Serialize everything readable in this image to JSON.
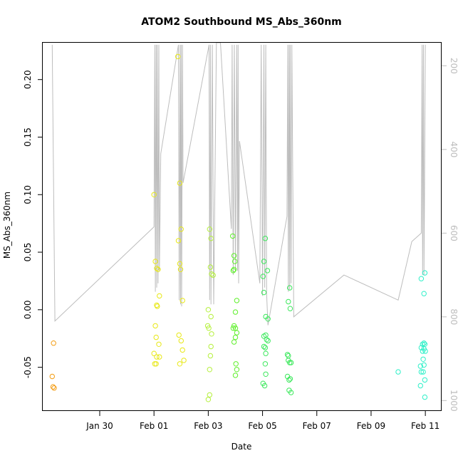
{
  "chart_data": {
    "type": "scatter",
    "title": "ATOM2 Southbound MS_Abs_360nm",
    "xlabel": "Date",
    "ylabel": "MS_Abs_360nm",
    "xlim_days": [
      27.9,
      42.6
    ],
    "ylim": [
      -0.088,
      0.232
    ],
    "y2lim": [
      1025,
      145
    ],
    "x_ticks": [
      {
        "day": 30,
        "label": "Jan 30"
      },
      {
        "day": 32,
        "label": "Feb 01"
      },
      {
        "day": 34,
        "label": "Feb 03"
      },
      {
        "day": 36,
        "label": "Feb 05"
      },
      {
        "day": 38,
        "label": "Feb 07"
      },
      {
        "day": 40,
        "label": "Feb 09"
      },
      {
        "day": 42,
        "label": "Feb 11"
      }
    ],
    "y_ticks": [
      {
        "value": 0.2,
        "label": "0.20"
      },
      {
        "value": 0.15,
        "label": "0.15"
      },
      {
        "value": 0.1,
        "label": "0.10"
      },
      {
        "value": 0.05,
        "label": "0.05"
      },
      {
        "value": 0.0,
        "label": "0.00"
      },
      {
        "value": -0.05,
        "label": "-0.05"
      }
    ],
    "y2_ticks": [
      {
        "value": 200,
        "label": "200"
      },
      {
        "value": 400,
        "label": "400"
      },
      {
        "value": 600,
        "label": "600"
      },
      {
        "value": 800,
        "label": "800"
      },
      {
        "value": 1000,
        "label": "1000"
      }
    ],
    "point_colors": [
      "#f39c12",
      "#e8e816",
      "#b5f03c",
      "#5ef02a",
      "#3ce85c",
      "#2ef0c8"
    ],
    "series": [
      {
        "color_index": 0,
        "points": [
          [
            28.3,
            -0.029
          ],
          [
            28.25,
            -0.058
          ],
          [
            28.28,
            -0.067
          ],
          [
            28.32,
            -0.068
          ]
        ]
      },
      {
        "color_index": 1,
        "points": [
          [
            32.0,
            0.1
          ],
          [
            32.05,
            0.042
          ],
          [
            32.1,
            0.036
          ],
          [
            32.15,
            0.035
          ],
          [
            32.2,
            0.012
          ],
          [
            32.1,
            0.004
          ],
          [
            32.12,
            0.003
          ],
          [
            32.05,
            -0.014
          ],
          [
            32.08,
            -0.024
          ],
          [
            32.18,
            -0.03
          ],
          [
            32.0,
            -0.038
          ],
          [
            32.1,
            -0.041
          ],
          [
            32.2,
            -0.041
          ],
          [
            32.03,
            -0.047
          ],
          [
            32.08,
            -0.047
          ]
        ]
      },
      {
        "color_index": 1,
        "points": [
          [
            32.88,
            0.22
          ],
          [
            32.95,
            0.11
          ],
          [
            33.0,
            0.07
          ],
          [
            32.9,
            0.06
          ],
          [
            32.95,
            0.04
          ],
          [
            32.98,
            0.035
          ],
          [
            33.05,
            0.008
          ],
          [
            32.92,
            -0.022
          ],
          [
            33.0,
            -0.027
          ],
          [
            33.05,
            -0.035
          ],
          [
            33.1,
            -0.044
          ],
          [
            32.95,
            -0.047
          ]
        ]
      },
      {
        "color_index": 2,
        "points": [
          [
            34.05,
            0.07
          ],
          [
            34.1,
            0.062
          ],
          [
            34.08,
            0.037
          ],
          [
            34.12,
            0.031
          ],
          [
            34.18,
            0.03
          ],
          [
            34.0,
            0.0
          ],
          [
            34.1,
            -0.006
          ],
          [
            33.98,
            -0.014
          ],
          [
            34.02,
            -0.016
          ],
          [
            34.12,
            -0.021
          ],
          [
            34.1,
            -0.032
          ],
          [
            34.08,
            -0.04
          ],
          [
            34.05,
            -0.052
          ],
          [
            34.05,
            -0.074
          ],
          [
            34.0,
            -0.078
          ]
        ]
      },
      {
        "color_index": 3,
        "points": [
          [
            34.9,
            0.064
          ],
          [
            34.95,
            0.047
          ],
          [
            34.98,
            0.042
          ],
          [
            34.95,
            0.035
          ],
          [
            34.92,
            0.034
          ],
          [
            35.05,
            0.008
          ],
          [
            35.0,
            -0.002
          ],
          [
            34.95,
            -0.014
          ],
          [
            35.0,
            -0.016
          ],
          [
            34.92,
            -0.016
          ],
          [
            35.05,
            -0.02
          ],
          [
            35.0,
            -0.024
          ],
          [
            34.95,
            -0.028
          ],
          [
            35.02,
            -0.047
          ],
          [
            35.05,
            -0.052
          ],
          [
            35.0,
            -0.057
          ]
        ]
      },
      {
        "color_index": 4,
        "points": [
          [
            36.1,
            0.062
          ],
          [
            36.05,
            0.042
          ],
          [
            36.18,
            0.034
          ],
          [
            36.02,
            0.029
          ],
          [
            36.05,
            0.015
          ],
          [
            36.12,
            -0.006
          ],
          [
            36.2,
            -0.008
          ],
          [
            36.05,
            -0.023
          ],
          [
            36.12,
            -0.022
          ],
          [
            36.15,
            -0.026
          ],
          [
            36.2,
            -0.027
          ],
          [
            36.05,
            -0.032
          ],
          [
            36.1,
            -0.033
          ],
          [
            36.12,
            -0.038
          ],
          [
            36.1,
            -0.047
          ],
          [
            36.12,
            -0.056
          ],
          [
            36.02,
            -0.064
          ],
          [
            36.08,
            -0.066
          ],
          [
            37.0,
            0.019
          ],
          [
            36.95,
            0.007
          ],
          [
            37.02,
            0.001
          ],
          [
            36.92,
            -0.039
          ],
          [
            36.95,
            -0.04
          ],
          [
            36.95,
            -0.044
          ],
          [
            37.0,
            -0.046
          ],
          [
            37.05,
            -0.046
          ],
          [
            36.92,
            -0.058
          ],
          [
            36.98,
            -0.061
          ],
          [
            37.02,
            -0.06
          ],
          [
            36.98,
            -0.07
          ],
          [
            37.05,
            -0.072
          ]
        ]
      },
      {
        "color_index": 5,
        "points": [
          [
            41.0,
            -0.054
          ],
          [
            41.85,
            0.027
          ],
          [
            41.98,
            0.032
          ],
          [
            41.95,
            0.014
          ],
          [
            41.95,
            -0.029
          ],
          [
            41.98,
            -0.03
          ],
          [
            41.9,
            -0.03
          ],
          [
            41.85,
            -0.033
          ],
          [
            41.95,
            -0.034
          ],
          [
            41.9,
            -0.036
          ],
          [
            42.0,
            -0.036
          ],
          [
            41.92,
            -0.043
          ],
          [
            41.95,
            -0.048
          ],
          [
            41.82,
            -0.049
          ],
          [
            41.85,
            -0.054
          ],
          [
            41.92,
            -0.054
          ],
          [
            41.98,
            -0.061
          ],
          [
            41.82,
            -0.066
          ],
          [
            41.98,
            -0.076
          ]
        ]
      }
    ],
    "depth_profile": {
      "axis": "right",
      "points": [
        [
          28.25,
          150
        ],
        [
          28.35,
          810
        ],
        [
          32.0,
          585
        ],
        [
          32.03,
          150
        ],
        [
          32.05,
          740
        ],
        [
          32.08,
          150
        ],
        [
          32.1,
          730
        ],
        [
          32.12,
          150
        ],
        [
          32.15,
          720
        ],
        [
          32.18,
          150
        ],
        [
          32.2,
          690
        ],
        [
          32.25,
          410
        ],
        [
          32.9,
          150
        ],
        [
          32.93,
          760
        ],
        [
          32.96,
          150
        ],
        [
          32.98,
          770
        ],
        [
          33.0,
          150
        ],
        [
          33.02,
          775
        ],
        [
          33.05,
          150
        ],
        [
          33.07,
          480
        ],
        [
          34.0,
          160
        ],
        [
          34.03,
          150
        ],
        [
          34.05,
          760
        ],
        [
          34.08,
          150
        ],
        [
          34.1,
          770
        ],
        [
          34.15,
          150
        ],
        [
          34.2,
          770
        ],
        [
          34.3,
          145
        ],
        [
          34.45,
          140
        ],
        [
          34.85,
          590
        ],
        [
          34.88,
          150
        ],
        [
          34.92,
          700
        ],
        [
          34.96,
          150
        ],
        [
          35.0,
          690
        ],
        [
          35.05,
          150
        ],
        [
          35.08,
          690
        ],
        [
          35.1,
          150
        ],
        [
          35.12,
          720
        ],
        [
          35.15,
          380
        ],
        [
          35.9,
          720
        ],
        [
          35.95,
          150
        ],
        [
          36.0,
          750
        ],
        [
          36.05,
          150
        ],
        [
          36.08,
          730
        ],
        [
          36.12,
          150
        ],
        [
          36.15,
          745
        ],
        [
          36.2,
          820
        ],
        [
          36.9,
          560
        ],
        [
          36.93,
          150
        ],
        [
          36.95,
          740
        ],
        [
          36.98,
          150
        ],
        [
          37.0,
          735
        ],
        [
          37.02,
          150
        ],
        [
          37.05,
          720
        ],
        [
          37.08,
          150
        ],
        [
          37.15,
          800
        ],
        [
          39.0,
          700
        ],
        [
          41.0,
          760
        ],
        [
          41.5,
          620
        ],
        [
          41.85,
          600
        ],
        [
          41.88,
          150
        ],
        [
          41.9,
          700
        ],
        [
          41.93,
          150
        ],
        [
          41.95,
          700
        ],
        [
          41.97,
          500
        ],
        [
          42.0,
          150
        ]
      ]
    }
  }
}
